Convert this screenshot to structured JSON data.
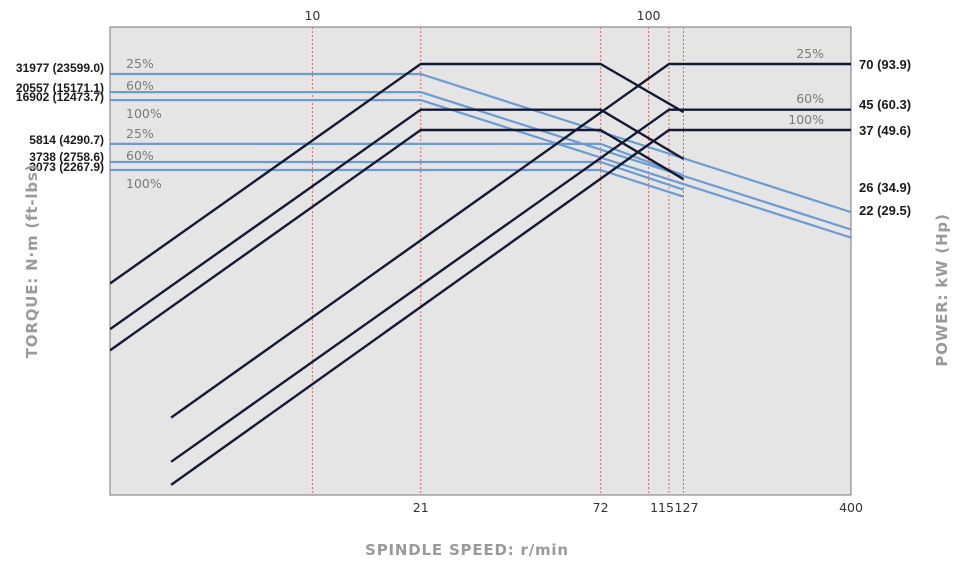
{
  "chart_data": {
    "type": "line",
    "xlabel": "SPINDLE SPEED: r/min",
    "ylabel_left": "TORQUE: N·m (ft-lbs)",
    "ylabel_right": "POWER: kW (Hp)",
    "x_scale": "log",
    "xlim": [
      2.5,
      400
    ],
    "top_ticks": [
      "10",
      "100"
    ],
    "bottom_ticks": [
      "21",
      "72",
      "115",
      "127",
      "400"
    ],
    "vertical_gridlines_at": [
      10,
      21,
      72,
      100,
      115,
      127
    ],
    "torque_labels": [
      "31977 (23599.0)",
      "20557 (15171.1)",
      "16902 (12473.7)",
      "5814 (4290.7)",
      "3738 (2758.6)",
      "3073 (2267.9)"
    ],
    "power_labels": [
      "70 (93.9)",
      "45 (60.3)",
      "37 (49.6)",
      "26 (34.9)",
      "22 (29.5)"
    ],
    "duty_labels": [
      "25%",
      "60%",
      "100%",
      "25%",
      "60%",
      "100%"
    ],
    "right_duty_labels": [
      "25%",
      "60%",
      "100%"
    ],
    "colors": {
      "torque": "#6a9bd3",
      "power": "#141a33",
      "grid": "#e06666",
      "background": "#e5e5e5"
    },
    "series": [
      {
        "kind": "torque",
        "duty": "25%",
        "x": [
          2.5,
          21,
          400
        ],
        "y": [
          31977,
          31977,
          1100
        ]
      },
      {
        "kind": "torque",
        "duty": "60%",
        "x": [
          2.5,
          21,
          400
        ],
        "y": [
          20557,
          20557,
          720
        ]
      },
      {
        "kind": "torque",
        "duty": "100%",
        "x": [
          2.5,
          21,
          400
        ],
        "y": [
          16902,
          16902,
          590
        ]
      },
      {
        "kind": "torque",
        "duty": "25%",
        "x": [
          2.5,
          72,
          127
        ],
        "y": [
          5814,
          5814,
          2700
        ]
      },
      {
        "kind": "torque",
        "duty": "60%",
        "x": [
          2.5,
          72,
          127
        ],
        "y": [
          3738,
          3738,
          1900
        ]
      },
      {
        "kind": "torque",
        "duty": "100%",
        "x": [
          2.5,
          72,
          127
        ],
        "y": [
          3073,
          3073,
          1600
        ]
      },
      {
        "kind": "power",
        "duty": "25%",
        "x": [
          2.5,
          21,
          72,
          127
        ],
        "y": [
          8.4,
          70,
          70,
          44
        ]
      },
      {
        "kind": "power",
        "duty": "60%",
        "x": [
          2.5,
          21,
          72,
          127
        ],
        "y": [
          5.4,
          45,
          45,
          28
        ]
      },
      {
        "kind": "power",
        "duty": "100%",
        "x": [
          2.5,
          21,
          72,
          127
        ],
        "y": [
          4.4,
          37,
          37,
          23
        ]
      },
      {
        "kind": "power",
        "duty": "25%",
        "x": [
          3.8,
          115,
          400
        ],
        "y": [
          2.3,
          70,
          70
        ]
      },
      {
        "kind": "power",
        "duty": "60%",
        "x": [
          3.8,
          115,
          400
        ],
        "y": [
          1.5,
          45,
          45
        ]
      },
      {
        "kind": "power",
        "duty": "100%",
        "x": [
          3.8,
          115,
          400
        ],
        "y": [
          1.2,
          37,
          37
        ]
      }
    ]
  }
}
